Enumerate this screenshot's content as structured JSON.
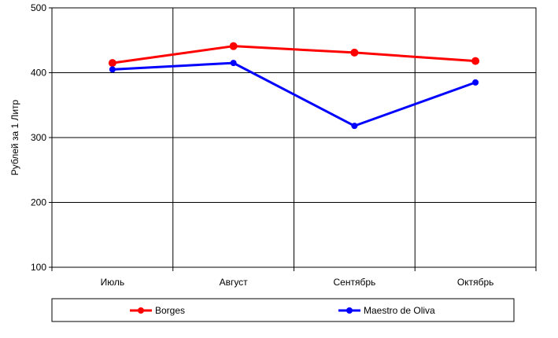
{
  "chart_data": {
    "type": "line",
    "title": "",
    "xlabel": "",
    "ylabel": "Рублей за 1 Литр",
    "categories": [
      "Июль",
      "Август",
      "Сентябрь",
      "Октябрь"
    ],
    "ylim": [
      100,
      500
    ],
    "yticks": [
      "100",
      "200",
      "300",
      "400",
      "500"
    ],
    "grid": true,
    "legend_position": "bottom",
    "series": [
      {
        "name": "Borges",
        "values": [
          415,
          441,
          431,
          418
        ],
        "color": "#ff0000"
      },
      {
        "name": "Maestro de Oliva",
        "values": [
          405,
          415,
          318,
          385
        ],
        "color": "#0000ff"
      }
    ]
  }
}
